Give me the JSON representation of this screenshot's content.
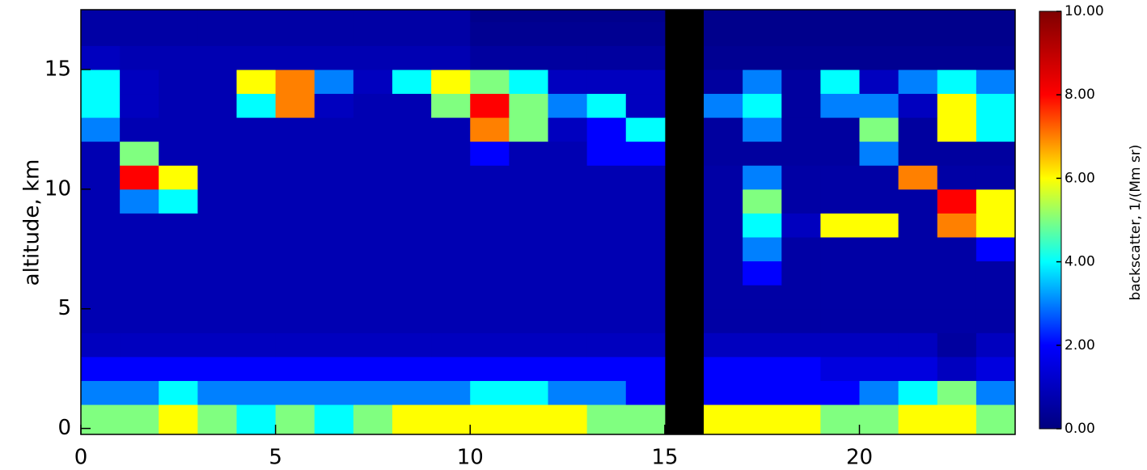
{
  "chart_data": {
    "type": "heatmap",
    "ylabel": "altitude, km",
    "colorbar_label": "backscatter, 1/(Mm sr)",
    "x_edges": [
      0,
      1,
      2,
      3,
      4,
      5,
      6,
      7,
      8,
      9,
      10,
      11,
      12,
      13,
      14,
      15,
      16,
      17,
      18,
      19,
      20,
      21,
      22,
      23,
      24
    ],
    "y_edges": [
      -0.25,
      1,
      2,
      3,
      4,
      5,
      6,
      7,
      8,
      9,
      10,
      11,
      12,
      13,
      14,
      15,
      16,
      17,
      17.5
    ],
    "xlim": [
      0,
      24
    ],
    "xticks": [
      0,
      5,
      10,
      15,
      20
    ],
    "ylim": [
      -0.25,
      17.5
    ],
    "yticks": [
      0,
      5,
      10,
      15
    ],
    "zlim": [
      0,
      10
    ],
    "zticks": [
      {
        "value": 0,
        "label": "0.00"
      },
      {
        "value": 2,
        "label": "2.00"
      },
      {
        "value": 4,
        "label": "4.00"
      },
      {
        "value": 6,
        "label": "6.00"
      },
      {
        "value": 8,
        "label": "8.00"
      },
      {
        "value": 10,
        "label": "10.00"
      }
    ],
    "colorscale": [
      "#00007f",
      "#0000ff",
      "#00ffff",
      "#ffff00",
      "#ff0000",
      "#7f0000"
    ],
    "missing_color": "#000000",
    "z": [
      [
        5,
        5,
        6,
        5,
        4,
        5,
        4,
        5,
        6,
        6,
        6,
        6,
        6,
        5,
        5,
        null,
        6,
        6,
        6,
        5,
        5,
        6,
        6,
        5
      ],
      [
        3,
        3,
        4,
        3,
        3,
        3,
        3,
        3,
        3,
        3,
        4,
        4,
        3,
        3,
        2,
        null,
        2,
        2,
        2,
        2,
        3,
        4,
        5,
        3
      ],
      [
        2,
        2,
        2,
        2,
        2,
        2,
        2,
        2,
        2,
        2,
        2,
        2,
        2,
        2,
        2,
        null,
        2,
        2,
        2,
        1.5,
        1.5,
        1.5,
        1,
        1.5
      ],
      [
        1,
        1,
        1,
        1,
        1,
        1,
        1,
        1,
        1,
        1,
        1,
        1,
        1,
        1,
        1,
        null,
        1,
        1,
        1,
        1,
        1,
        1,
        0.5,
        1
      ],
      [
        0.8,
        0.8,
        0.8,
        0.8,
        0.8,
        0.8,
        0.8,
        0.8,
        0.8,
        0.8,
        0.8,
        0.8,
        0.8,
        0.8,
        0.8,
        null,
        0.6,
        0.6,
        0.6,
        0.6,
        0.6,
        0.6,
        0.6,
        0.6
      ],
      [
        0.8,
        0.8,
        0.8,
        0.8,
        0.8,
        0.8,
        0.8,
        0.8,
        0.8,
        0.8,
        0.8,
        0.8,
        0.8,
        0.8,
        0.8,
        null,
        0.6,
        0.6,
        0.6,
        0.6,
        0.6,
        0.6,
        0.6,
        0.6
      ],
      [
        0.8,
        0.8,
        0.8,
        0.8,
        0.8,
        0.8,
        0.8,
        0.8,
        0.8,
        0.8,
        0.8,
        0.8,
        0.8,
        0.8,
        0.8,
        null,
        0.6,
        2,
        0.6,
        0.6,
        0.6,
        0.6,
        0.6,
        0.6
      ],
      [
        0.8,
        0.8,
        0.8,
        0.8,
        0.8,
        0.8,
        0.8,
        0.8,
        0.8,
        0.8,
        0.8,
        0.8,
        0.8,
        0.8,
        0.8,
        null,
        0.6,
        3,
        0.6,
        0.6,
        0.6,
        0.6,
        0.6,
        2
      ],
      [
        0.8,
        0.8,
        0.8,
        0.8,
        0.8,
        0.8,
        0.8,
        0.8,
        0.8,
        0.8,
        0.8,
        0.8,
        0.8,
        0.8,
        0.8,
        null,
        0.6,
        4,
        1,
        6,
        6,
        0.6,
        7,
        6
      ],
      [
        0.8,
        3,
        4,
        0.8,
        0.8,
        0.8,
        0.8,
        0.8,
        0.8,
        0.8,
        0.8,
        0.8,
        0.8,
        0.8,
        0.8,
        null,
        0.6,
        5,
        0.6,
        0.6,
        0.6,
        0.6,
        8,
        6
      ],
      [
        0.8,
        8,
        6,
        0.8,
        0.8,
        0.8,
        0.8,
        0.8,
        0.8,
        0.8,
        0.8,
        0.8,
        0.8,
        0.8,
        0.8,
        null,
        0.6,
        3,
        0.6,
        0.6,
        0.6,
        7,
        0.6,
        0.6
      ],
      [
        0.8,
        5,
        0.8,
        0.8,
        0.8,
        0.8,
        0.8,
        0.8,
        0.8,
        0.8,
        2,
        0.8,
        0.8,
        2,
        2,
        null,
        0.5,
        0.5,
        0.5,
        0.5,
        3,
        0.5,
        0.5,
        0.5
      ],
      [
        3,
        0.8,
        0.8,
        0.8,
        0.8,
        0.8,
        0.8,
        0.8,
        0.8,
        0.8,
        7,
        5,
        1,
        2,
        4,
        null,
        0.5,
        3,
        0.5,
        0.5,
        5,
        0.5,
        6,
        4
      ],
      [
        4,
        1,
        0.8,
        0.8,
        4,
        7,
        1,
        0.8,
        0.8,
        5,
        8,
        5,
        3,
        4,
        1,
        null,
        3,
        4,
        0.5,
        3,
        3,
        1,
        6,
        4
      ],
      [
        4,
        1,
        0.8,
        0.8,
        6,
        7,
        3,
        1,
        4,
        6,
        5,
        4,
        1,
        1,
        1,
        null,
        0.5,
        3,
        0.5,
        4,
        1,
        3,
        4,
        3
      ],
      [
        1,
        0.8,
        0.8,
        0.8,
        0.8,
        0.8,
        0.8,
        0.8,
        0.8,
        0.8,
        0.5,
        0.5,
        0.5,
        0.5,
        0.5,
        null,
        0.3,
        0.3,
        0.3,
        0.3,
        0.3,
        0.3,
        0.3,
        0.3
      ],
      [
        0.6,
        0.6,
        0.6,
        0.6,
        0.6,
        0.6,
        0.6,
        0.6,
        0.6,
        0.6,
        0.3,
        0.3,
        0.3,
        0.3,
        0.3,
        null,
        0.2,
        0.2,
        0.2,
        0.2,
        0.2,
        0.2,
        0.2,
        0.2
      ],
      [
        0.6,
        0.6,
        0.6,
        0.6,
        0.6,
        0.6,
        0.6,
        0.6,
        0.6,
        0.6,
        0.2,
        0.2,
        0.2,
        0.2,
        0.2,
        null,
        0.2,
        0.2,
        0.2,
        0.2,
        0.2,
        0.2,
        0.2,
        0.2
      ]
    ]
  }
}
